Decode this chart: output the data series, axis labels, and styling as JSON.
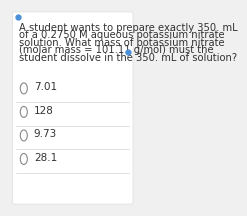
{
  "background_color": "#f0f0f0",
  "card_color": "#ffffff",
  "question_text": "A student wants to prepare exactly 350. mL\nof a 0.2750 M aqueous potassium nitrate\nsolution. What mass of potassium nitrate\n(molar mass = 101.11 g/mol) must the\nstudent dissolve in the 350. mL of solution?",
  "choices": [
    "7.01",
    "128",
    "9.73",
    "28.1"
  ],
  "text_color": "#333333",
  "circle_color": "#888888",
  "divider_color": "#cccccc",
  "dot_color": "#4a90d9",
  "question_fontsize": 7.2,
  "choice_fontsize": 7.5
}
